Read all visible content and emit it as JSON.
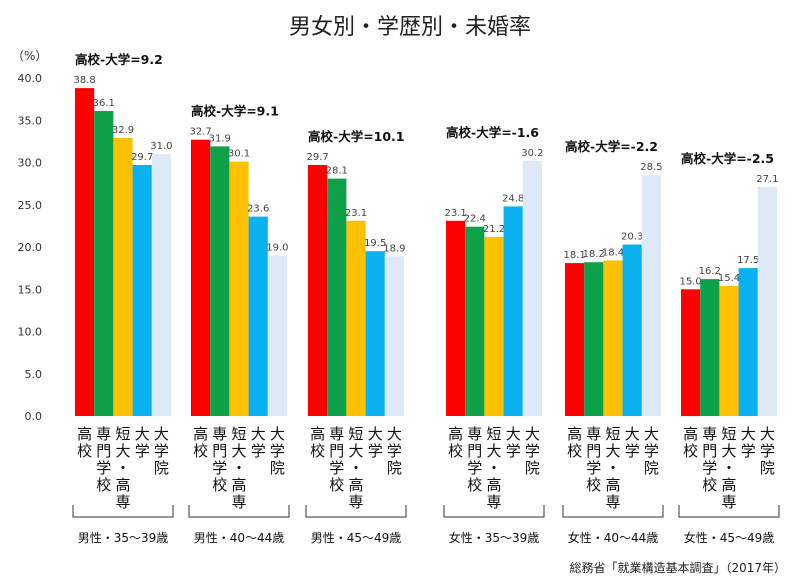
{
  "chart_data": {
    "type": "bar",
    "title": "男女別・学歴別・未婚率",
    "y_unit": "（%）",
    "ylim": [
      0,
      40
    ],
    "y_ticks": [
      "0.0",
      "5.0",
      "10.0",
      "15.0",
      "20.0",
      "25.0",
      "30.0",
      "35.0",
      "40.0"
    ],
    "grid": false,
    "categories": [
      "高校",
      "専門学校",
      "短大・高専",
      "大学",
      "大学院"
    ],
    "series_colors": [
      "#ff0000",
      "#0fa14a",
      "#ffc000",
      "#0ab0f0",
      "#dde9f6"
    ],
    "groups": [
      {
        "label": "男性・35～39歳",
        "diff_label": "高校-大学=9.2",
        "values": [
          38.8,
          36.1,
          32.9,
          29.7,
          31.0
        ]
      },
      {
        "label": "男性・40～44歳",
        "diff_label": "高校-大学=9.1",
        "values": [
          32.7,
          31.9,
          30.1,
          23.6,
          19.0
        ]
      },
      {
        "label": "男性・45～49歳",
        "diff_label": "高校-大学=10.1",
        "values": [
          29.7,
          28.1,
          23.1,
          19.5,
          18.9
        ]
      },
      {
        "label": "女性・35～39歳",
        "diff_label": "高校-大学=-1.6",
        "values": [
          23.1,
          22.4,
          21.2,
          24.8,
          30.2
        ]
      },
      {
        "label": "女性・40～44歳",
        "diff_label": "高校-大学=-2.2",
        "values": [
          18.1,
          18.2,
          18.4,
          20.3,
          28.5
        ]
      },
      {
        "label": "女性・45～49歳",
        "diff_label": "高校-大学=-2.5",
        "values": [
          15.0,
          16.2,
          15.4,
          17.5,
          27.1
        ]
      }
    ],
    "source": "総務省「就業構造基本調査」（2017年）"
  }
}
